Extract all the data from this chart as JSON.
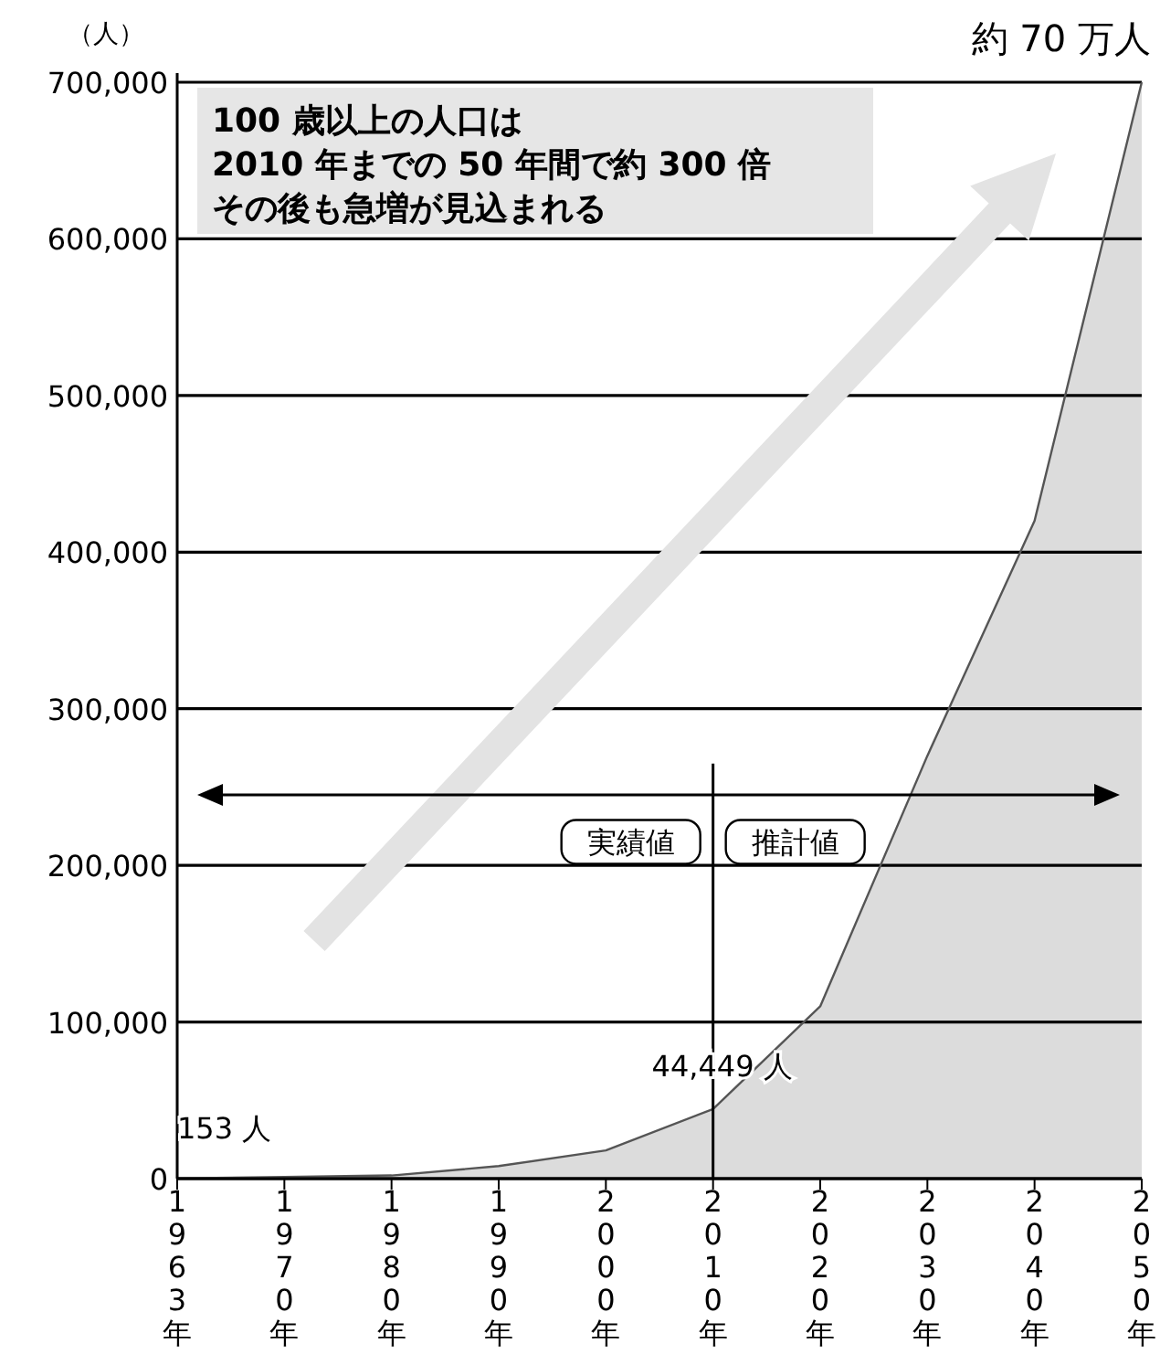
{
  "chart_data": {
    "type": "area",
    "ylabel": "（人）",
    "categories": [
      "1963年",
      "1970年",
      "1980年",
      "1990年",
      "2000年",
      "2010年",
      "2020年",
      "2030年",
      "2040年",
      "2050年"
    ],
    "series": [
      {
        "color": "#dcdcdc",
        "values": [
          153,
          1000,
          2000,
          8000,
          18000,
          44449,
          110000,
          270000,
          420000,
          700000
        ]
      }
    ],
    "ylim": [
      0,
      700000
    ],
    "yticks": [
      {
        "value": 0,
        "label": "0"
      },
      {
        "value": 100000,
        "label": "100,000"
      },
      {
        "value": 200000,
        "label": "200,000"
      },
      {
        "value": 300000,
        "label": "300,000"
      },
      {
        "value": 400000,
        "label": "400,000"
      },
      {
        "value": 500000,
        "label": "500,000"
      },
      {
        "value": 600000,
        "label": "600,000"
      },
      {
        "value": 700000,
        "label": "700,000"
      }
    ],
    "grid": "y",
    "marker": "none",
    "line_style": "solid",
    "ref_lines": [
      {
        "axis": "x",
        "value": "2010年",
        "color": "#000000"
      }
    ],
    "annotations": [
      "100 歳以上の人口は",
      "2010 年までの 50 年間で約 300 倍",
      "その後も急増が見込まれる",
      "実績値",
      "推計値",
      {
        "text": "153 人",
        "x": "1963年",
        "y": 153
      },
      {
        "text": "44,449 人",
        "x": "2010年",
        "y": 44449
      },
      {
        "text": "約 70 万人",
        "x": "2050年",
        "y": 700000
      }
    ]
  }
}
